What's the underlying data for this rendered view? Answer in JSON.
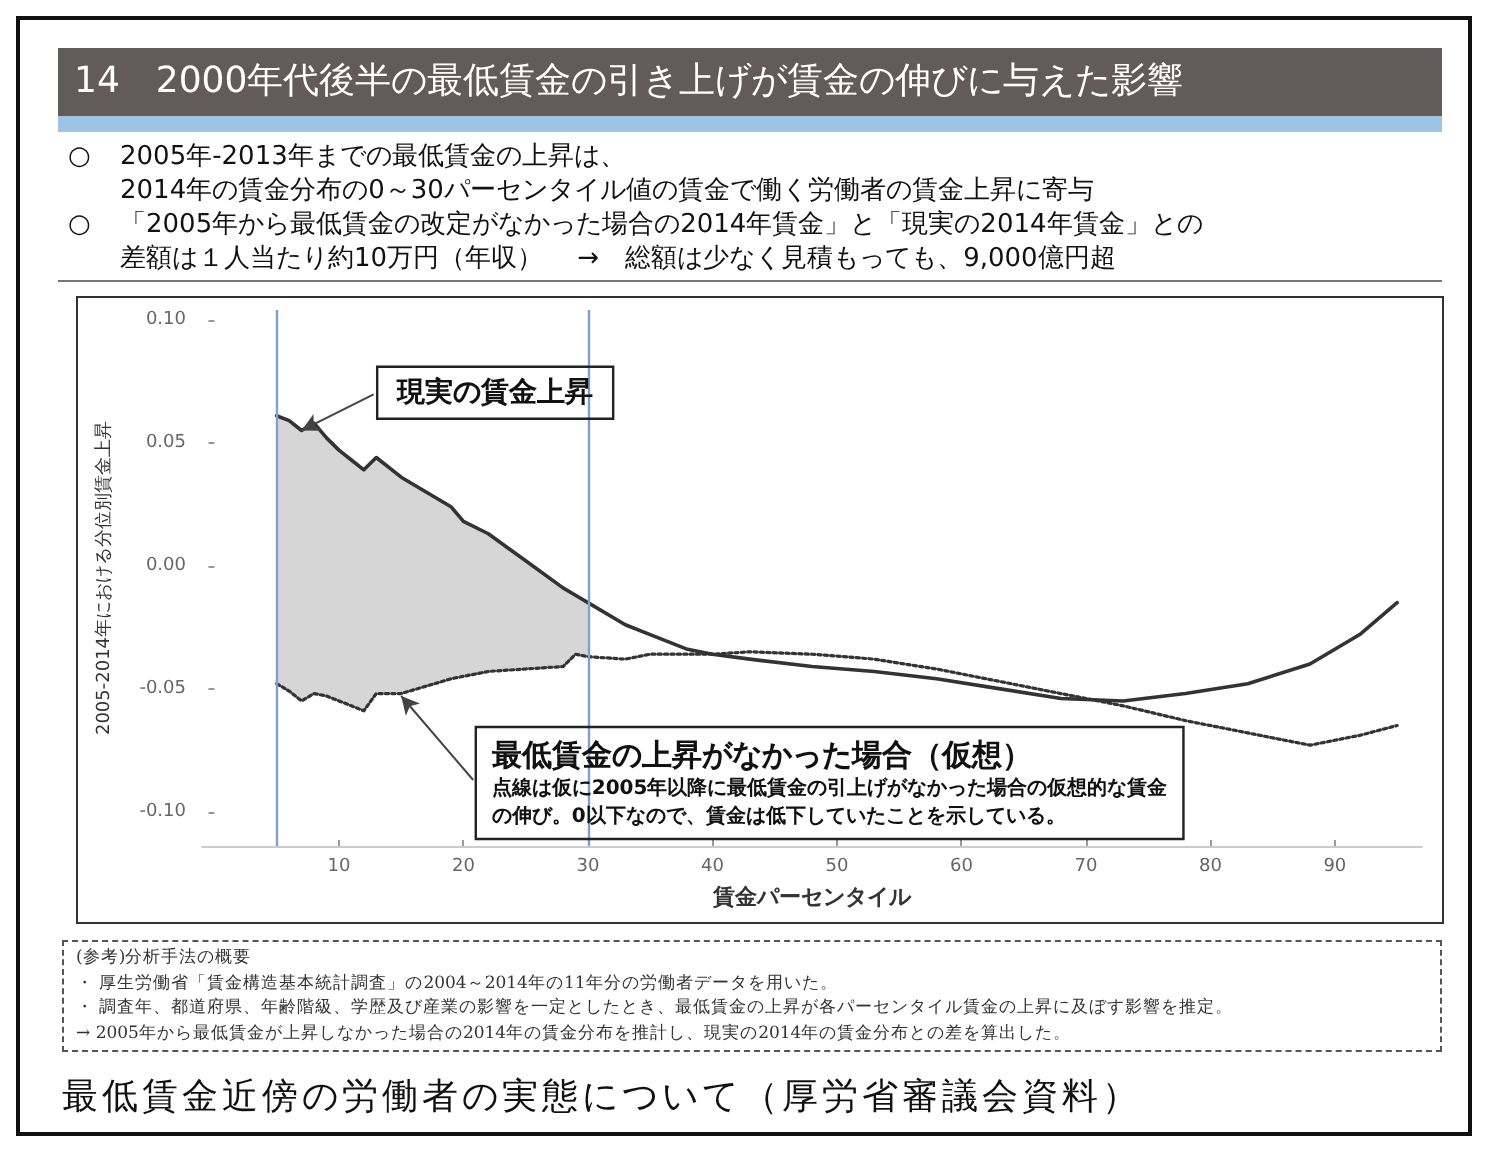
{
  "chart_data": {
    "type": "line",
    "title": "14　2000年代後半の最低賃金の引き上げが賃金の伸びに与えた影響",
    "subtitle": "○　2005年-2013年までの最低賃金の上昇は、\n2014年の賃金分布の0～30パーセンタイル値の賃金で働く労働者の賃金上昇に寄与\n○　「2005年から最低賃金の改定がなかった場合の2014年賃金」と「現実の2014年賃金」との差額は１人当たり約10万円（年収）　 →　総額は少なく見積もっても、9,000億円超",
    "xlabel": "賃金パーセンタイル",
    "ylabel": "2005-2014年における分位別賃金上昇",
    "x": [
      5,
      6,
      7,
      8,
      9,
      10,
      11,
      12,
      13,
      15,
      17,
      19,
      20,
      22,
      25,
      28,
      29,
      30,
      33,
      35,
      38,
      40,
      43,
      48,
      53,
      58,
      63,
      68,
      73,
      78,
      83,
      88,
      92,
      95
    ],
    "series": [
      {
        "color": "#333333",
        "line_style": "solid",
        "values": [
          0.061,
          0.059,
          0.055,
          0.058,
          0.052,
          0.047,
          0.043,
          0.039,
          0.044,
          0.036,
          0.03,
          0.024,
          0.018,
          0.013,
          0.002,
          -0.009,
          -0.012,
          -0.015,
          -0.024,
          -0.028,
          -0.034,
          -0.036,
          -0.038,
          -0.041,
          -0.043,
          -0.046,
          -0.05,
          -0.054,
          -0.055,
          -0.052,
          -0.048,
          -0.04,
          -0.028,
          -0.015
        ],
        "upper": [
          0.061,
          0.059,
          0.055,
          0.058,
          0.052,
          0.047,
          0.043,
          0.039,
          0.044,
          0.036,
          0.03,
          0.024,
          0.018,
          0.013,
          0.002,
          -0.009,
          -0.012,
          -0.015,
          null,
          null,
          null,
          null,
          null,
          null,
          null,
          null,
          null,
          null,
          null,
          null,
          null,
          null,
          null,
          null
        ],
        "lower": [
          -0.048,
          -0.051,
          -0.055,
          -0.052,
          -0.053,
          -0.055,
          -0.057,
          -0.059,
          -0.052,
          -0.052,
          -0.049,
          -0.046,
          -0.045,
          -0.043,
          -0.042,
          -0.041,
          -0.036,
          -0.037,
          null,
          null,
          null,
          null,
          null,
          null,
          null,
          null,
          null,
          null,
          null,
          null,
          null,
          null,
          null,
          null
        ]
      },
      {
        "color": "#333333",
        "line_style": "dotted",
        "values": [
          -0.048,
          -0.051,
          -0.055,
          -0.052,
          -0.053,
          -0.055,
          -0.057,
          -0.059,
          -0.052,
          -0.052,
          -0.049,
          -0.046,
          -0.045,
          -0.043,
          -0.042,
          -0.041,
          -0.036,
          -0.037,
          -0.038,
          -0.036,
          -0.036,
          -0.036,
          -0.035,
          -0.036,
          -0.038,
          -0.042,
          -0.047,
          -0.052,
          -0.057,
          -0.063,
          -0.068,
          -0.073,
          -0.069,
          -0.065
        ]
      }
    ],
    "xlim": [
      -1,
      97
    ],
    "xticks": [
      10,
      20,
      30,
      40,
      50,
      60,
      70,
      80,
      90
    ],
    "ylim": [
      -0.114,
      0.104
    ],
    "yticks": [
      {
        "value": -0.1,
        "label": "-0.10"
      },
      {
        "value": -0.05,
        "label": "-0.05"
      },
      {
        "value": 0,
        "label": "0.00"
      },
      {
        "value": 0.05,
        "label": "0.05"
      },
      {
        "value": 0.1,
        "label": "0.10"
      }
    ],
    "ref_lines": [
      {
        "axis": "x",
        "value": 5,
        "color": "#7f9fcf"
      },
      {
        "axis": "x",
        "value": 30,
        "color": "#7f9fcf"
      }
    ],
    "grid": false,
    "marker": "none",
    "annotations": [
      {
        "text": "現実の賃金上昇",
        "x": 7,
        "y": 0.055
      },
      {
        "text": "最低賃金の上昇がなかった場合（仮想）",
        "x": 15,
        "y": -0.053
      },
      "点線は仮に2005年以降に最低賃金の引上げがなかった場合の仮想的な賃金の伸び。0以下なので、賃金は低下していたことを示している。",
      "(参考)分析手法の概要",
      "・ 厚生労働省「賃金構造基本統計調査」の2004～2014年の11年分の労働者データを用いた。",
      "・ 調査年、都道府県、年齢階級、学歴及び産業の影響を一定としたとき、最低賃金の上昇が各パーセンタイル賃金の上昇に及ぼす影響を推定。",
      "→ 2005年から最低賃金が上昇しなかった場合の2014年の賃金分布を推計し、現実の2014年の賃金分布との差を算出した。",
      "最低賃金近傍の労働者の実態について（厚労省審議会資料）"
    ]
  }
}
